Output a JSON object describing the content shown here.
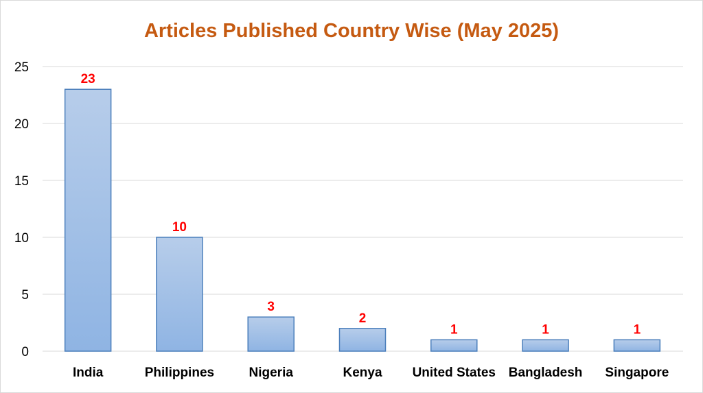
{
  "chart_data": {
    "type": "bar",
    "title": "Articles Published Country Wise (May 2025)",
    "xlabel": "",
    "ylabel": "",
    "categories": [
      "India",
      "Philippines",
      "Nigeria",
      "Kenya",
      "United States",
      "Bangladesh",
      "Singapore"
    ],
    "values": [
      23,
      10,
      3,
      2,
      1,
      1,
      1
    ],
    "ylim": [
      0,
      25
    ],
    "yticks": [
      0,
      5,
      10,
      15,
      20,
      25
    ],
    "grid": true,
    "legend": "none",
    "data_labels": true
  },
  "colors": {
    "title": "#c55a11",
    "bar_fill_top": "#b7cdea",
    "bar_fill_bottom": "#8fb4e3",
    "bar_stroke": "#4a7ebb",
    "data_label": "#ff0000",
    "gridline": "#d9d9d9"
  }
}
